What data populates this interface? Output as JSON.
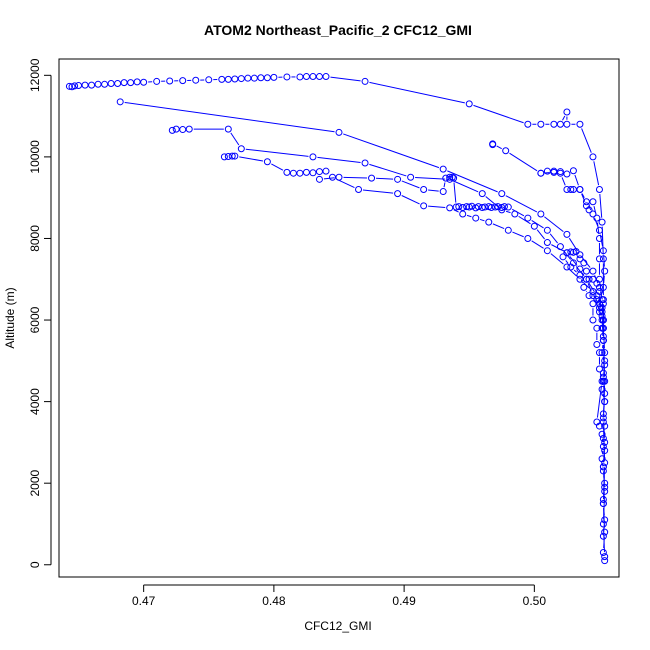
{
  "chart_data": {
    "type": "scatter",
    "title": "ATOM2 Northeast_Pacific_2 CFC12_GMI",
    "xlabel": "CFC12_GMI",
    "ylabel": "Altitude (m)",
    "xlim": [
      0.4635,
      0.5065
    ],
    "ylim": [
      -300,
      12400
    ],
    "x_ticks": [
      0.47,
      0.48,
      0.49,
      0.5
    ],
    "x_tick_labels": [
      "0.47",
      "0.48",
      "0.49",
      "0.50"
    ],
    "y_ticks": [
      0,
      2000,
      4000,
      6000,
      8000,
      10000,
      12000
    ],
    "y_tick_labels": [
      "0",
      "2000",
      "4000",
      "6000",
      "8000",
      "10000",
      "12000"
    ],
    "grid": false,
    "legend": "none",
    "marker": "open-circle",
    "connected_with_lines": true,
    "series_color": "#0000ff",
    "series": [
      {
        "x": [
          0.4643,
          0.4645,
          0.4647,
          0.465,
          0.4655,
          0.466,
          0.4665,
          0.467,
          0.4675,
          0.468,
          0.4685,
          0.469,
          0.4695,
          0.47,
          0.471,
          0.472,
          0.473,
          0.474,
          0.475,
          0.476,
          0.4765,
          0.477,
          0.4775,
          0.478,
          0.4785,
          0.479,
          0.4795,
          0.48,
          0.481,
          0.482,
          0.4825,
          0.483,
          0.4835,
          0.484,
          0.487,
          0.495,
          0.4995,
          0.5005,
          0.5015,
          0.502,
          0.5025,
          0.5025,
          0.5035,
          0.5045,
          0.505,
          0.5052,
          0.5053,
          0.5053,
          0.5053,
          0.5054,
          0.5053,
          0.5054,
          0.5053,
          0.5054,
          0.5053,
          0.5054
        ],
        "y": [
          11730,
          11720,
          11740,
          11750,
          11760,
          11760,
          11780,
          11780,
          11800,
          11800,
          11820,
          11820,
          11840,
          11830,
          11850,
          11860,
          11870,
          11880,
          11890,
          11900,
          11900,
          11910,
          11920,
          11930,
          11930,
          11940,
          11940,
          11950,
          11960,
          11960,
          11970,
          11970,
          11970,
          11970,
          11850,
          11300,
          10800,
          10800,
          10800,
          10800,
          11100,
          10800,
          10800,
          10000,
          9200,
          8400,
          7500,
          6500,
          5500,
          4500,
          3500,
          2500,
          1500,
          800,
          300,
          100
        ]
      },
      {
        "x": [
          0.4682,
          0.485,
          0.493,
          0.4975,
          0.5005,
          0.5025,
          0.5035,
          0.5045,
          0.505,
          0.5053,
          0.5053,
          0.5054,
          0.5053,
          0.5054,
          0.5053,
          0.5054,
          0.5053,
          0.5054,
          0.5053,
          0.5054
        ],
        "y": [
          11350,
          10600,
          9700,
          9100,
          8600,
          8100,
          7600,
          7200,
          6800,
          6400,
          5800,
          5200,
          4700,
          4200,
          3600,
          3000,
          2400,
          1800,
          1000,
          200
        ]
      },
      {
        "x": [
          0.4722,
          0.4725,
          0.473,
          0.4735,
          0.4765,
          0.4775,
          0.483,
          0.487,
          0.4905,
          0.4935,
          0.496,
          0.4975,
          0.4985,
          0.5,
          0.501,
          0.5025,
          0.5035,
          0.504,
          0.5045,
          0.5052,
          0.5053
        ],
        "y": [
          10650,
          10680,
          10670,
          10680,
          10680,
          10200,
          10000,
          9850,
          9500,
          9450,
          9100,
          8700,
          8600,
          8300,
          7900,
          7650,
          7250,
          7000,
          6600,
          6100,
          5600
        ]
      },
      {
        "x": [
          0.4762,
          0.4765,
          0.4768,
          0.477,
          0.4795,
          0.481,
          0.4815,
          0.482,
          0.4825,
          0.483,
          0.4835,
          0.484,
          0.4845,
          0.4865,
          0.4895,
          0.4915,
          0.4935,
          0.4945,
          0.4955,
          0.4965,
          0.498,
          0.4995,
          0.501,
          0.5025,
          0.5035,
          0.5045,
          0.505,
          0.5052,
          0.5053
        ],
        "y": [
          10000,
          10010,
          10020,
          10020,
          9880,
          9620,
          9600,
          9600,
          9620,
          9610,
          9640,
          9650,
          9500,
          9200,
          9100,
          8800,
          8750,
          8600,
          8500,
          8400,
          8200,
          8000,
          7700,
          7300,
          7000,
          6700,
          6300,
          6000,
          5500
        ]
      },
      {
        "x": [
          0.4835,
          0.485,
          0.4875,
          0.4895,
          0.4915,
          0.493,
          0.4932,
          0.4935,
          0.4937,
          0.4938,
          0.494,
          0.4942,
          0.4945,
          0.4948,
          0.495,
          0.4952,
          0.4955,
          0.4957,
          0.496,
          0.4962,
          0.4965,
          0.4967,
          0.497,
          0.4972,
          0.4975,
          0.4977,
          0.498,
          0.4995,
          0.501,
          0.502,
          0.503,
          0.504,
          0.5048,
          0.5052,
          0.5053
        ],
        "y": [
          9450,
          9500,
          9480,
          9450,
          9200,
          9150,
          9480,
          9500,
          9500,
          9480,
          8770,
          8780,
          8760,
          8780,
          8770,
          8790,
          8750,
          8780,
          8760,
          8770,
          8780,
          8760,
          8770,
          8780,
          8760,
          8780,
          8770,
          8500,
          8200,
          7800,
          7400,
          7000,
          6600,
          6200,
          5800
        ]
      },
      {
        "x": [
          0.4968,
          0.4968,
          0.4978,
          0.5005,
          0.5015,
          0.502,
          0.5025,
          0.503,
          0.5035,
          0.504,
          0.5045,
          0.505,
          0.5053,
          0.5054,
          0.5053
        ],
        "y": [
          10300,
          10320,
          10150,
          9600,
          9620,
          9640,
          9580,
          9660,
          9200,
          8900,
          8600,
          8200,
          7700,
          7200,
          6800
        ]
      },
      {
        "x": [
          0.5005,
          0.501,
          0.5015,
          0.502,
          0.5025,
          0.5028,
          0.503,
          0.5035,
          0.504,
          0.5042,
          0.5045,
          0.5048,
          0.505,
          0.505,
          0.505,
          0.5052,
          0.5053,
          0.5053,
          0.5054,
          0.5053,
          0.5054
        ],
        "y": [
          9600,
          9650,
          9650,
          9600,
          9200,
          9200,
          9200,
          9200,
          8800,
          8700,
          8900,
          8500,
          8000,
          7500,
          7000,
          6500,
          6000,
          5500,
          5000,
          4500,
          4000
        ]
      },
      {
        "x": [
          0.5025,
          0.5028,
          0.503,
          0.5032,
          0.5035,
          0.5038,
          0.504,
          0.5042,
          0.5045,
          0.5048,
          0.505,
          0.5048,
          0.505,
          0.5052,
          0.505,
          0.5053,
          0.5052,
          0.5053,
          0.5052,
          0.5054,
          0.5053,
          0.5052,
          0.5054,
          0.5053,
          0.5054,
          0.5053,
          0.5054,
          0.5053,
          0.5054,
          0.5053
        ],
        "y": [
          7650,
          7670,
          7660,
          7680,
          7500,
          7400,
          7200,
          7000,
          7000,
          6900,
          6700,
          6500,
          6400,
          6300,
          6200,
          6000,
          5800,
          5500,
          5200,
          4900,
          4600,
          4300,
          4000,
          3700,
          3400,
          3100,
          2800,
          2400,
          2000,
          1600
        ]
      },
      {
        "x": [
          0.5022,
          0.5028,
          0.5035,
          0.5038,
          0.5042,
          0.5045,
          0.5045,
          0.5048,
          0.5048,
          0.505,
          0.505,
          0.5052,
          0.5048,
          0.505,
          0.5052,
          0.5053,
          0.5052,
          0.5053,
          0.5054,
          0.5053,
          0.5054,
          0.5053
        ],
        "y": [
          7550,
          7300,
          7100,
          6800,
          6600,
          6400,
          6000,
          5800,
          5400,
          5200,
          4800,
          4500,
          3500,
          3400,
          3200,
          2900,
          2600,
          2300,
          1900,
          1500,
          1100,
          700
        ]
      }
    ]
  }
}
